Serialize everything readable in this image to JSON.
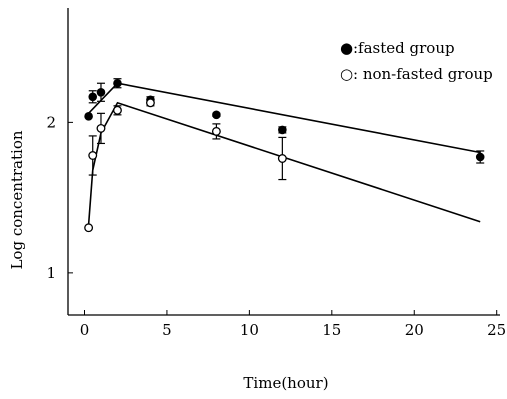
{
  "chart_data": {
    "type": "scatter",
    "title": "",
    "xlabel": "Time(hour)",
    "ylabel": "Log concentration",
    "xlim": [
      -1,
      25.2
    ],
    "ylim": [
      0.72,
      2.76
    ],
    "x_ticks": [
      0,
      5,
      10,
      15,
      20,
      25
    ],
    "x_tick_labels": [
      "0",
      "5",
      "10",
      "15",
      "20",
      "25"
    ],
    "y_ticks": [
      1,
      2
    ],
    "y_tick_labels": [
      "1",
      "2"
    ],
    "grid": false,
    "legend_position": "top-right",
    "series": [
      {
        "name": ":fasted group",
        "legend_symbol": "●",
        "marker": "filled-circle",
        "points": [
          {
            "x": 0.25,
            "y": 2.04,
            "err": 0.0
          },
          {
            "x": 0.5,
            "y": 2.17,
            "err": 0.04
          },
          {
            "x": 1.0,
            "y": 2.2,
            "err": 0.06
          },
          {
            "x": 2.0,
            "y": 2.26,
            "err": 0.03
          },
          {
            "x": 4.0,
            "y": 2.15,
            "err": 0.02
          },
          {
            "x": 8.0,
            "y": 2.05,
            "err": 0.01
          },
          {
            "x": 12.0,
            "y": 1.95,
            "err": 0.02
          },
          {
            "x": 24.0,
            "y": 1.77,
            "err": 0.04
          }
        ],
        "fit_line": [
          [
            0.25,
            2.06
          ],
          [
            2.0,
            2.26
          ],
          [
            24.0,
            1.8
          ]
        ]
      },
      {
        "name": ": non-fasted group",
        "legend_symbol": "○",
        "marker": "open-circle",
        "points": [
          {
            "x": 0.25,
            "y": 1.3,
            "err": 0.0
          },
          {
            "x": 0.5,
            "y": 1.78,
            "err": 0.13
          },
          {
            "x": 1.0,
            "y": 1.96,
            "err": 0.1
          },
          {
            "x": 2.0,
            "y": 2.08,
            "err": 0.03
          },
          {
            "x": 4.0,
            "y": 2.13,
            "err": 0.02
          },
          {
            "x": 8.0,
            "y": 1.94,
            "err": 0.05
          },
          {
            "x": 12.0,
            "y": 1.76,
            "err": 0.14
          }
        ],
        "fit_line": [
          [
            0.25,
            1.32
          ],
          [
            0.5,
            1.68
          ],
          [
            1.0,
            1.93
          ],
          [
            2.0,
            2.13
          ],
          [
            24.0,
            1.34
          ]
        ]
      }
    ]
  }
}
